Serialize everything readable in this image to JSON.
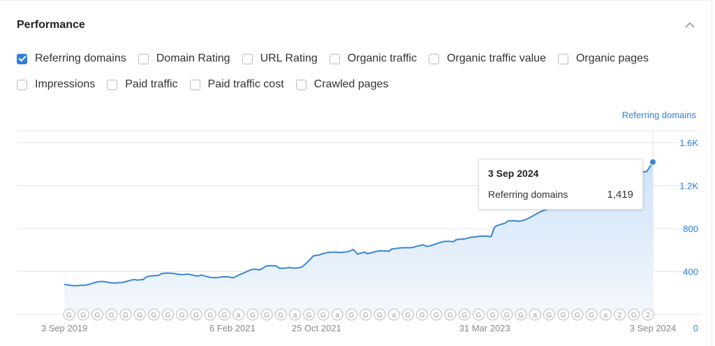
{
  "panel": {
    "title": "Performance",
    "collapse_icon": "chevron-up-icon"
  },
  "metrics": [
    {
      "label": "Referring domains",
      "checked": true
    },
    {
      "label": "Domain Rating",
      "checked": false
    },
    {
      "label": "URL Rating",
      "checked": false
    },
    {
      "label": "Organic traffic",
      "checked": false
    },
    {
      "label": "Organic traffic value",
      "checked": false
    },
    {
      "label": "Organic pages",
      "checked": false
    },
    {
      "label": "Impressions",
      "checked": false
    },
    {
      "label": "Paid traffic",
      "checked": false
    },
    {
      "label": "Paid traffic cost",
      "checked": false
    },
    {
      "label": "Crawled pages",
      "checked": false
    }
  ],
  "colors": {
    "accent": "#2f7fdc",
    "line": "#3a86d8",
    "area": "#e6f0fb",
    "grid": "#e5e5e5"
  },
  "tooltip": {
    "date": "3 Sep 2024",
    "label": "Referring domains",
    "value": "1,419"
  },
  "chart_data": {
    "type": "area",
    "series_label": "Referring domains",
    "y_axis_position": "right",
    "ylim": [
      0,
      1600
    ],
    "yticks": [
      0,
      400,
      800,
      1200,
      1600
    ],
    "ytick_labels": [
      "0",
      "400",
      "800",
      "1.2K",
      "1.6K"
    ],
    "xlim": [
      "2019-09-03",
      "2024-09-03"
    ],
    "x_tick_labels": [
      "3 Sep 2019",
      "6 Feb 2021",
      "25 Oct 2021",
      "31 Mar 2023",
      "3 Sep 2024"
    ],
    "x_tick_dates": [
      "2019-09-03",
      "2021-02-06",
      "2021-10-25",
      "2023-03-31",
      "2024-09-03"
    ],
    "grid": true,
    "series": [
      {
        "x": [
          "2019-09-03",
          "2019-11-01",
          "2020-01-01",
          "2020-03-01",
          "2020-04-15",
          "2020-05-15",
          "2020-07-01",
          "2020-09-01",
          "2020-10-01",
          "2020-11-01",
          "2021-01-01",
          "2021-02-10",
          "2021-03-15",
          "2021-04-20",
          "2021-05-10",
          "2021-05-25",
          "2021-07-01",
          "2021-08-01",
          "2021-09-10",
          "2021-10-15",
          "2021-11-01",
          "2022-01-01",
          "2022-02-15",
          "2022-03-01",
          "2022-04-01",
          "2022-05-15",
          "2022-06-15",
          "2022-07-01",
          "2022-08-15",
          "2022-10-01",
          "2022-12-01",
          "2023-01-01",
          "2023-02-01",
          "2023-03-15",
          "2023-04-20",
          "2023-05-01",
          "2023-06-10",
          "2023-07-15",
          "2024-08-15",
          "2024-09-03"
        ],
        "y": [
          275,
          280,
          300,
          305,
          320,
          340,
          375,
          380,
          375,
          365,
          345,
          338,
          380,
          430,
          420,
          450,
          440,
          440,
          445,
          552,
          552,
          586,
          595,
          562,
          573,
          585,
          600,
          606,
          630,
          643,
          673,
          686,
          703,
          720,
          735,
          807,
          860,
          870,
          1330,
          1419
        ]
      }
    ],
    "annotations": [
      "G",
      "G",
      "G",
      "G",
      "G",
      "G",
      "G",
      "G",
      "G",
      "G",
      "G",
      "G",
      "a",
      "G",
      "G",
      "G",
      "a",
      "G",
      "G",
      "a",
      "G",
      "G",
      "G",
      "a",
      "G",
      "G",
      "G",
      "G",
      "G",
      "G",
      "G",
      "G",
      "G",
      "a",
      "G",
      "G",
      "G",
      "G",
      "a",
      "2",
      "G",
      "2"
    ]
  }
}
